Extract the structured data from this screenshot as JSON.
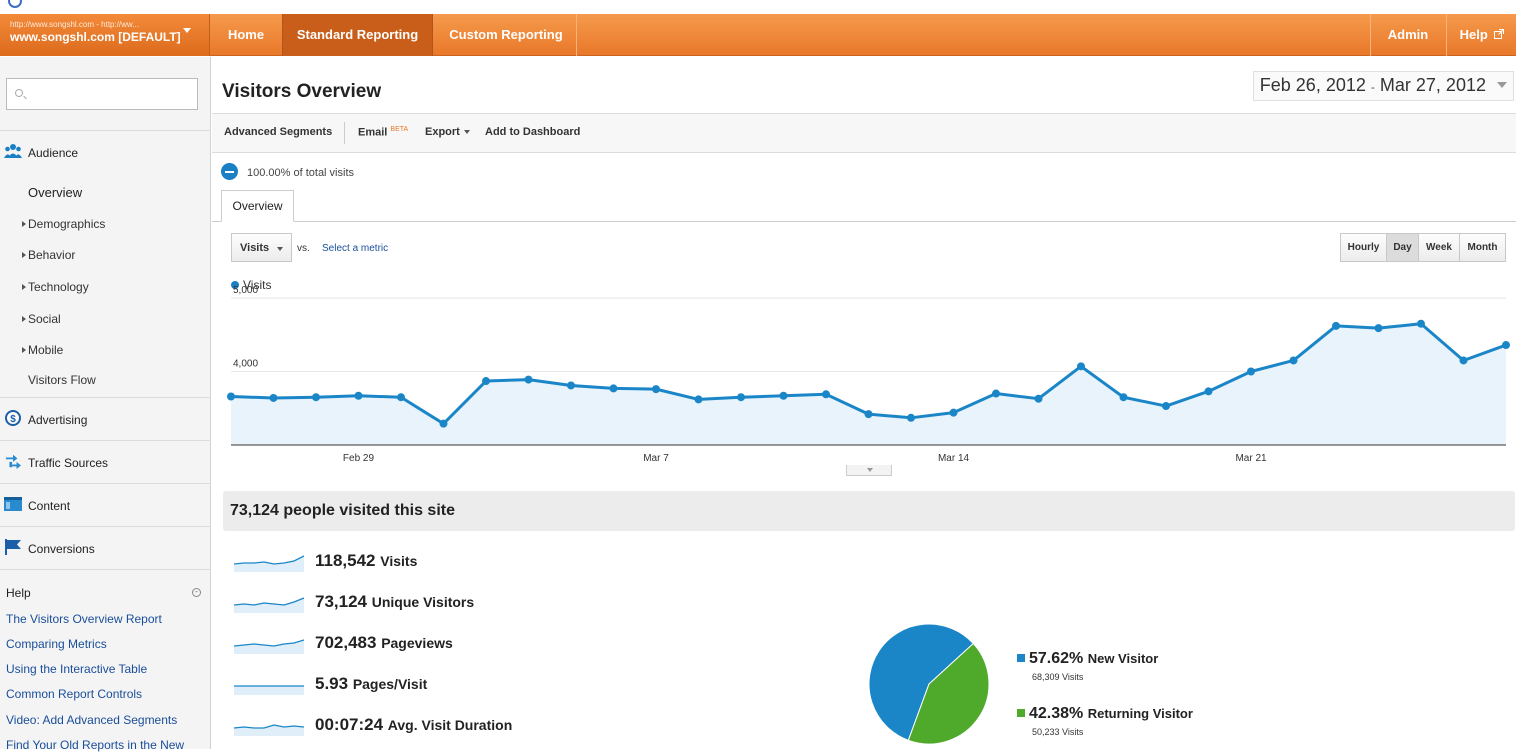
{
  "nav": {
    "account_url": "http://www.songshl.com - http://ww...",
    "account_name": "www.songshl.com [DEFAULT]",
    "items": [
      "Home",
      "Standard Reporting",
      "Custom Reporting"
    ],
    "right_items": [
      "Admin",
      "Help"
    ]
  },
  "sidebar": {
    "search_placeholder": "",
    "sections": [
      "Audience",
      "Advertising",
      "Traffic Sources",
      "Content",
      "Conversions"
    ],
    "audience_items": [
      "Overview",
      "Demographics",
      "Behavior",
      "Technology",
      "Social",
      "Mobile",
      "Visitors Flow"
    ],
    "help_title": "Help",
    "help_links": [
      "The Visitors Overview Report",
      "Comparing Metrics",
      "Using the Interactive Table",
      "Common Report Controls",
      "Video: Add Advanced Segments",
      "Find Your Old Reports in the New"
    ]
  },
  "page": {
    "title": "Visitors Overview",
    "date_start": "Feb 26, 2012",
    "date_sep": "-",
    "date_end": "Mar 27, 2012",
    "toolbar": {
      "segments": "Advanced Segments",
      "email": "Email",
      "email_badge": "BETA",
      "export": "Export",
      "dashboard": "Add to Dashboard"
    },
    "segment_text": "100.00% of total visits",
    "tab": "Overview",
    "metric": "Visits",
    "vs": "vs.",
    "select_metric": "Select a metric",
    "granularity": [
      "Hourly",
      "Day",
      "Week",
      "Month"
    ],
    "active_granularity": "Day",
    "summary_title": "73,124 people visited this site"
  },
  "colors": {
    "accent": "#e9782a",
    "series": "#1a7fc4",
    "new_visitor": "#1a86c8",
    "returning_visitor": "#4faa2c"
  },
  "chart_data": {
    "type": "line",
    "series": [
      {
        "name": "Visits",
        "values": [
          3660,
          3640,
          3650,
          3670,
          3650,
          3290,
          3870,
          3890,
          3810,
          3770,
          3760,
          3620,
          3650,
          3670,
          3690,
          3420,
          3370,
          3440,
          3700,
          3630,
          4070,
          3650,
          3530,
          3730,
          4000,
          4150,
          4620,
          4590,
          4650,
          4150,
          4360
        ]
      }
    ],
    "x_tick_labels": [
      "Feb 29",
      "Mar 7",
      "Mar 14",
      "Mar 21"
    ],
    "x_tick_index": [
      3,
      10,
      17,
      24
    ],
    "y_ticks": [
      4000,
      5000
    ],
    "y_tick_labels": [
      "4,000",
      "5,000"
    ],
    "ylim": [
      3000,
      5000
    ],
    "grid": true,
    "legend": "top-left"
  },
  "stats": [
    {
      "value": "118,542",
      "label": "Visits"
    },
    {
      "value": "73,124",
      "label": "Unique Visitors"
    },
    {
      "value": "702,483",
      "label": "Pageviews"
    },
    {
      "value": "5.93",
      "label": "Pages/Visit"
    },
    {
      "value": "00:07:24",
      "label": "Avg. Visit Duration"
    }
  ],
  "pie_data": {
    "type": "pie",
    "slices": [
      {
        "name": "New Visitor",
        "percent": 57.62,
        "percent_label": "57.62%",
        "visits": "68,309 Visits"
      },
      {
        "name": "Returning Visitor",
        "percent": 42.38,
        "percent_label": "42.38%",
        "visits": "50,233 Visits"
      }
    ]
  }
}
